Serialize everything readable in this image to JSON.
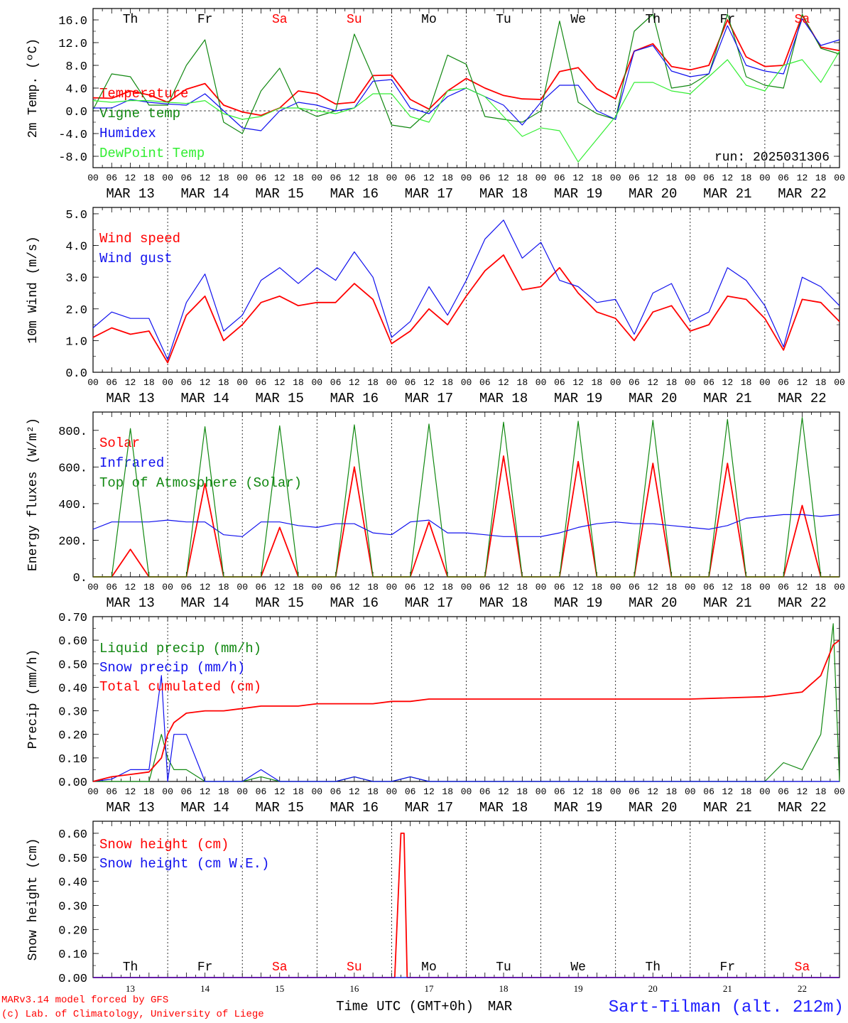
{
  "footer": {
    "credit_line1": "MARv3.14 model forced by GFS",
    "credit_line2": "(c) Lab. of Climatology, University of Liege",
    "xlabel": "Time UTC (GMT+0h)",
    "month": "MAR",
    "station": "Sart-Tilman (alt. 212m)"
  },
  "colors": {
    "red": "#ff0000",
    "darkgreen": "#118811",
    "blue": "#1010ee",
    "lightgreen": "#33ee33",
    "black": "#000000"
  },
  "days": {
    "weekday": [
      "Th",
      "Fr",
      "Sa",
      "Su",
      "Mo",
      "Tu",
      "We",
      "Th",
      "Fr",
      "Sa"
    ],
    "weekend": [
      false,
      false,
      true,
      true,
      false,
      false,
      false,
      false,
      false,
      true
    ],
    "date_labels": [
      "MAR 13",
      "MAR 14",
      "MAR 15",
      "MAR 16",
      "MAR 17",
      "MAR 18",
      "MAR 19",
      "MAR 20",
      "MAR 21",
      "MAR 22"
    ],
    "day_numbers": [
      "13",
      "14",
      "15",
      "16",
      "17",
      "18",
      "19",
      "20",
      "21",
      "22"
    ],
    "hour_ticks": [
      "00",
      "06",
      "12",
      "18"
    ]
  },
  "chart_data": [
    {
      "type": "line",
      "ylabel": "2m Temp. (ºC)",
      "ylim": [
        -10,
        18
      ],
      "yticks": [
        "-8.0",
        "-4.0",
        "0.0",
        "4.0",
        "8.0",
        "12.0",
        "16.0"
      ],
      "ytick_values": [
        -8,
        -4,
        0,
        4,
        8,
        12,
        16
      ],
      "zero_line": true,
      "annotation": "run: 2025031306",
      "x_hours": [
        0,
        6,
        12,
        18,
        24,
        30,
        36,
        42,
        48,
        54,
        60,
        66,
        72,
        78,
        84,
        90,
        96,
        102,
        108,
        114,
        120,
        126,
        132,
        138,
        144,
        150,
        156,
        162,
        168,
        174,
        180,
        186,
        192,
        198,
        204,
        210,
        216,
        222,
        228,
        234,
        240
      ],
      "series": [
        {
          "name": "Temperature",
          "color": "red",
          "values": [
            2.3,
            2.2,
            3.5,
            2.8,
            1.5,
            3.8,
            4.8,
            1.0,
            -0.2,
            -0.8,
            0.5,
            3.5,
            3.0,
            1.2,
            1.5,
            6.2,
            6.3,
            2.0,
            0.3,
            3.5,
            5.7,
            4.0,
            2.7,
            2.1,
            2.0,
            6.9,
            7.6,
            3.9,
            2.1,
            10.5,
            11.8,
            7.8,
            7.2,
            8.0,
            16.0,
            9.5,
            7.8,
            8.0,
            16.8,
            11.2,
            10.6
          ]
        },
        {
          "name": "Vigne temp",
          "color": "darkgreen",
          "values": [
            0.2,
            6.5,
            6.0,
            1.0,
            1.0,
            8.0,
            12.5,
            -2.0,
            -4.0,
            3.5,
            7.5,
            0.5,
            -1.0,
            0.0,
            13.5,
            6.0,
            -2.5,
            -3.0,
            0.0,
            9.8,
            8.2,
            -1.0,
            -1.5,
            -2.0,
            0.0,
            15.8,
            1.5,
            -0.5,
            -1.5,
            14.0,
            17.0,
            4.0,
            4.5,
            6.5,
            17.0,
            6.0,
            4.5,
            4.0,
            17.0,
            11.0,
            10.0
          ]
        },
        {
          "name": "Humidex",
          "color": "blue",
          "values": [
            0.5,
            0.5,
            2.0,
            1.5,
            1.2,
            1.0,
            3.0,
            0.0,
            -3.0,
            -3.5,
            0.0,
            1.5,
            1.0,
            0.0,
            0.5,
            5.2,
            5.5,
            0.5,
            -0.5,
            2.5,
            4.0,
            2.5,
            1.0,
            -2.5,
            1.5,
            4.5,
            4.5,
            0.0,
            -1.5,
            10.5,
            11.5,
            7.0,
            6.0,
            6.5,
            15.0,
            8.0,
            7.0,
            6.5,
            16.2,
            11.5,
            12.5
          ]
        },
        {
          "name": "DewPoint Temp",
          "color": "lightgreen",
          "values": [
            1.8,
            1.5,
            1.8,
            1.8,
            1.5,
            1.3,
            1.8,
            -0.5,
            -1.5,
            -1.0,
            0.5,
            0.5,
            0.0,
            -0.5,
            0.5,
            3.0,
            3.0,
            -1.0,
            -2.0,
            3.5,
            4.0,
            2.5,
            -1.0,
            -4.5,
            -3.0,
            -3.5,
            -9.0,
            -5.0,
            -1.0,
            5.0,
            5.0,
            3.5,
            3.0,
            6.0,
            9.0,
            4.5,
            3.5,
            8.0,
            9.0,
            5.0,
            10.5
          ]
        }
      ]
    },
    {
      "type": "line",
      "ylabel": "10m Wind (m/s)",
      "ylim": [
        0,
        5.2
      ],
      "yticks": [
        "0.0",
        "1.0",
        "2.0",
        "3.0",
        "4.0",
        "5.0"
      ],
      "ytick_values": [
        0,
        1,
        2,
        3,
        4,
        5
      ],
      "x_hours": [
        0,
        6,
        12,
        18,
        24,
        30,
        36,
        42,
        48,
        54,
        60,
        66,
        72,
        78,
        84,
        90,
        96,
        102,
        108,
        114,
        120,
        126,
        132,
        138,
        144,
        150,
        156,
        162,
        168,
        174,
        180,
        186,
        192,
        198,
        204,
        210,
        216,
        222,
        228,
        234,
        240
      ],
      "series": [
        {
          "name": "Wind speed",
          "color": "red",
          "values": [
            1.1,
            1.4,
            1.2,
            1.3,
            0.3,
            1.8,
            2.4,
            1.0,
            1.5,
            2.2,
            2.4,
            2.1,
            2.2,
            2.2,
            2.8,
            2.3,
            0.9,
            1.3,
            2.0,
            1.5,
            2.4,
            3.2,
            3.7,
            2.6,
            2.7,
            3.3,
            2.5,
            1.9,
            1.7,
            1.0,
            1.9,
            2.1,
            1.3,
            1.5,
            2.4,
            2.3,
            1.7,
            0.7,
            2.3,
            2.2,
            1.6
          ]
        },
        {
          "name": "Wind gust",
          "color": "blue",
          "values": [
            1.4,
            1.9,
            1.7,
            1.7,
            0.4,
            2.2,
            3.1,
            1.3,
            1.8,
            2.9,
            3.3,
            2.8,
            3.3,
            2.9,
            3.8,
            3.0,
            1.1,
            1.6,
            2.7,
            1.8,
            2.9,
            4.2,
            4.8,
            3.6,
            4.1,
            2.9,
            2.7,
            2.2,
            2.3,
            1.2,
            2.5,
            2.8,
            1.6,
            1.9,
            3.3,
            2.9,
            2.1,
            0.8,
            3.0,
            2.7,
            2.1
          ]
        }
      ]
    },
    {
      "type": "line",
      "ylabel": "Energy fluxes (W/m²)",
      "ylim": [
        0,
        900
      ],
      "yticks": [
        "0.",
        "200.",
        "400.",
        "600.",
        "800."
      ],
      "ytick_values": [
        0,
        200,
        400,
        600,
        800
      ],
      "x_hours": [
        0,
        6,
        12,
        18,
        24,
        30,
        36,
        42,
        48,
        54,
        60,
        66,
        72,
        78,
        84,
        90,
        96,
        102,
        108,
        114,
        120,
        126,
        132,
        138,
        144,
        150,
        156,
        162,
        168,
        174,
        180,
        186,
        192,
        198,
        204,
        210,
        216,
        222,
        228,
        234,
        240
      ],
      "series": [
        {
          "name": "Solar",
          "color": "red",
          "values": [
            0,
            0,
            150,
            0,
            0,
            0,
            510,
            0,
            0,
            0,
            270,
            0,
            0,
            0,
            600,
            0,
            0,
            0,
            300,
            0,
            0,
            0,
            660,
            0,
            0,
            0,
            630,
            0,
            0,
            0,
            620,
            0,
            0,
            0,
            620,
            0,
            0,
            0,
            390,
            0,
            0
          ]
        },
        {
          "name": "Infrared",
          "color": "blue",
          "values": [
            260,
            300,
            300,
            300,
            310,
            300,
            300,
            230,
            220,
            300,
            300,
            280,
            270,
            290,
            290,
            240,
            230,
            300,
            310,
            240,
            240,
            230,
            220,
            220,
            220,
            240,
            270,
            290,
            300,
            290,
            290,
            280,
            270,
            260,
            280,
            320,
            330,
            340,
            340,
            330,
            340
          ]
        },
        {
          "name": "Top of Atmosphere (Solar)",
          "color": "darkgreen",
          "values": [
            0,
            0,
            810,
            0,
            0,
            0,
            820,
            0,
            0,
            0,
            825,
            0,
            0,
            0,
            830,
            0,
            0,
            0,
            835,
            0,
            0,
            0,
            845,
            0,
            0,
            0,
            850,
            0,
            0,
            0,
            855,
            0,
            0,
            0,
            860,
            0,
            0,
            0,
            870,
            0,
            0
          ]
        }
      ]
    },
    {
      "type": "line",
      "ylabel": "Precip (mm/h)",
      "ylim": [
        0,
        0.7
      ],
      "yticks": [
        "0.00",
        "0.10",
        "0.20",
        "0.30",
        "0.40",
        "0.50",
        "0.60",
        "0.70"
      ],
      "ytick_values": [
        0,
        0.1,
        0.2,
        0.3,
        0.4,
        0.5,
        0.6,
        0.7
      ],
      "x_hours": [
        0,
        6,
        12,
        18,
        22,
        24,
        26,
        30,
        36,
        42,
        48,
        54,
        60,
        66,
        72,
        78,
        84,
        90,
        96,
        102,
        108,
        114,
        120,
        144,
        168,
        192,
        216,
        222,
        228,
        234,
        238,
        240
      ],
      "series": [
        {
          "name": "Liquid precip (mm/h)",
          "color": "darkgreen",
          "values": [
            0,
            0,
            0,
            0,
            0.2,
            0.1,
            0.05,
            0.05,
            0,
            0,
            0,
            0.02,
            0,
            0,
            0,
            0,
            0.02,
            0,
            0,
            0.02,
            0,
            0,
            0,
            0,
            0,
            0,
            0,
            0.08,
            0.05,
            0.2,
            0.67,
            0
          ]
        },
        {
          "name": "Snow precip (mm/h)",
          "color": "blue",
          "values": [
            0,
            0.01,
            0.05,
            0.05,
            0.45,
            0,
            0.2,
            0.2,
            0,
            0,
            0,
            0.05,
            0,
            0,
            0,
            0,
            0.02,
            0,
            0,
            0.02,
            0,
            0,
            0,
            0,
            0,
            0,
            0,
            0,
            0,
            0,
            0,
            0
          ]
        },
        {
          "name": "Total cumulated (cm)",
          "color": "red",
          "values": [
            0,
            0.02,
            0.03,
            0.04,
            0.1,
            0.2,
            0.25,
            0.29,
            0.3,
            0.3,
            0.31,
            0.32,
            0.32,
            0.32,
            0.33,
            0.33,
            0.33,
            0.33,
            0.34,
            0.34,
            0.35,
            0.35,
            0.35,
            0.35,
            0.35,
            0.35,
            0.36,
            0.37,
            0.38,
            0.45,
            0.58,
            0.6
          ]
        }
      ]
    },
    {
      "type": "line",
      "ylabel": "Snow height (cm)",
      "ylim": [
        0,
        0.65
      ],
      "yticks": [
        "0.00",
        "0.10",
        "0.20",
        "0.30",
        "0.40",
        "0.50",
        "0.60"
      ],
      "ytick_values": [
        0,
        0.1,
        0.2,
        0.3,
        0.4,
        0.5,
        0.6
      ],
      "x_hours": [
        0,
        97,
        99,
        100,
        101,
        240
      ],
      "series": [
        {
          "name": "Snow height (cm)",
          "color": "red",
          "values": [
            0,
            0,
            0.6,
            0.6,
            0,
            0
          ]
        },
        {
          "name": "Snow height (cm W.E.)",
          "color": "blue",
          "values": [
            0,
            0,
            0,
            0,
            0,
            0
          ]
        }
      ]
    }
  ]
}
